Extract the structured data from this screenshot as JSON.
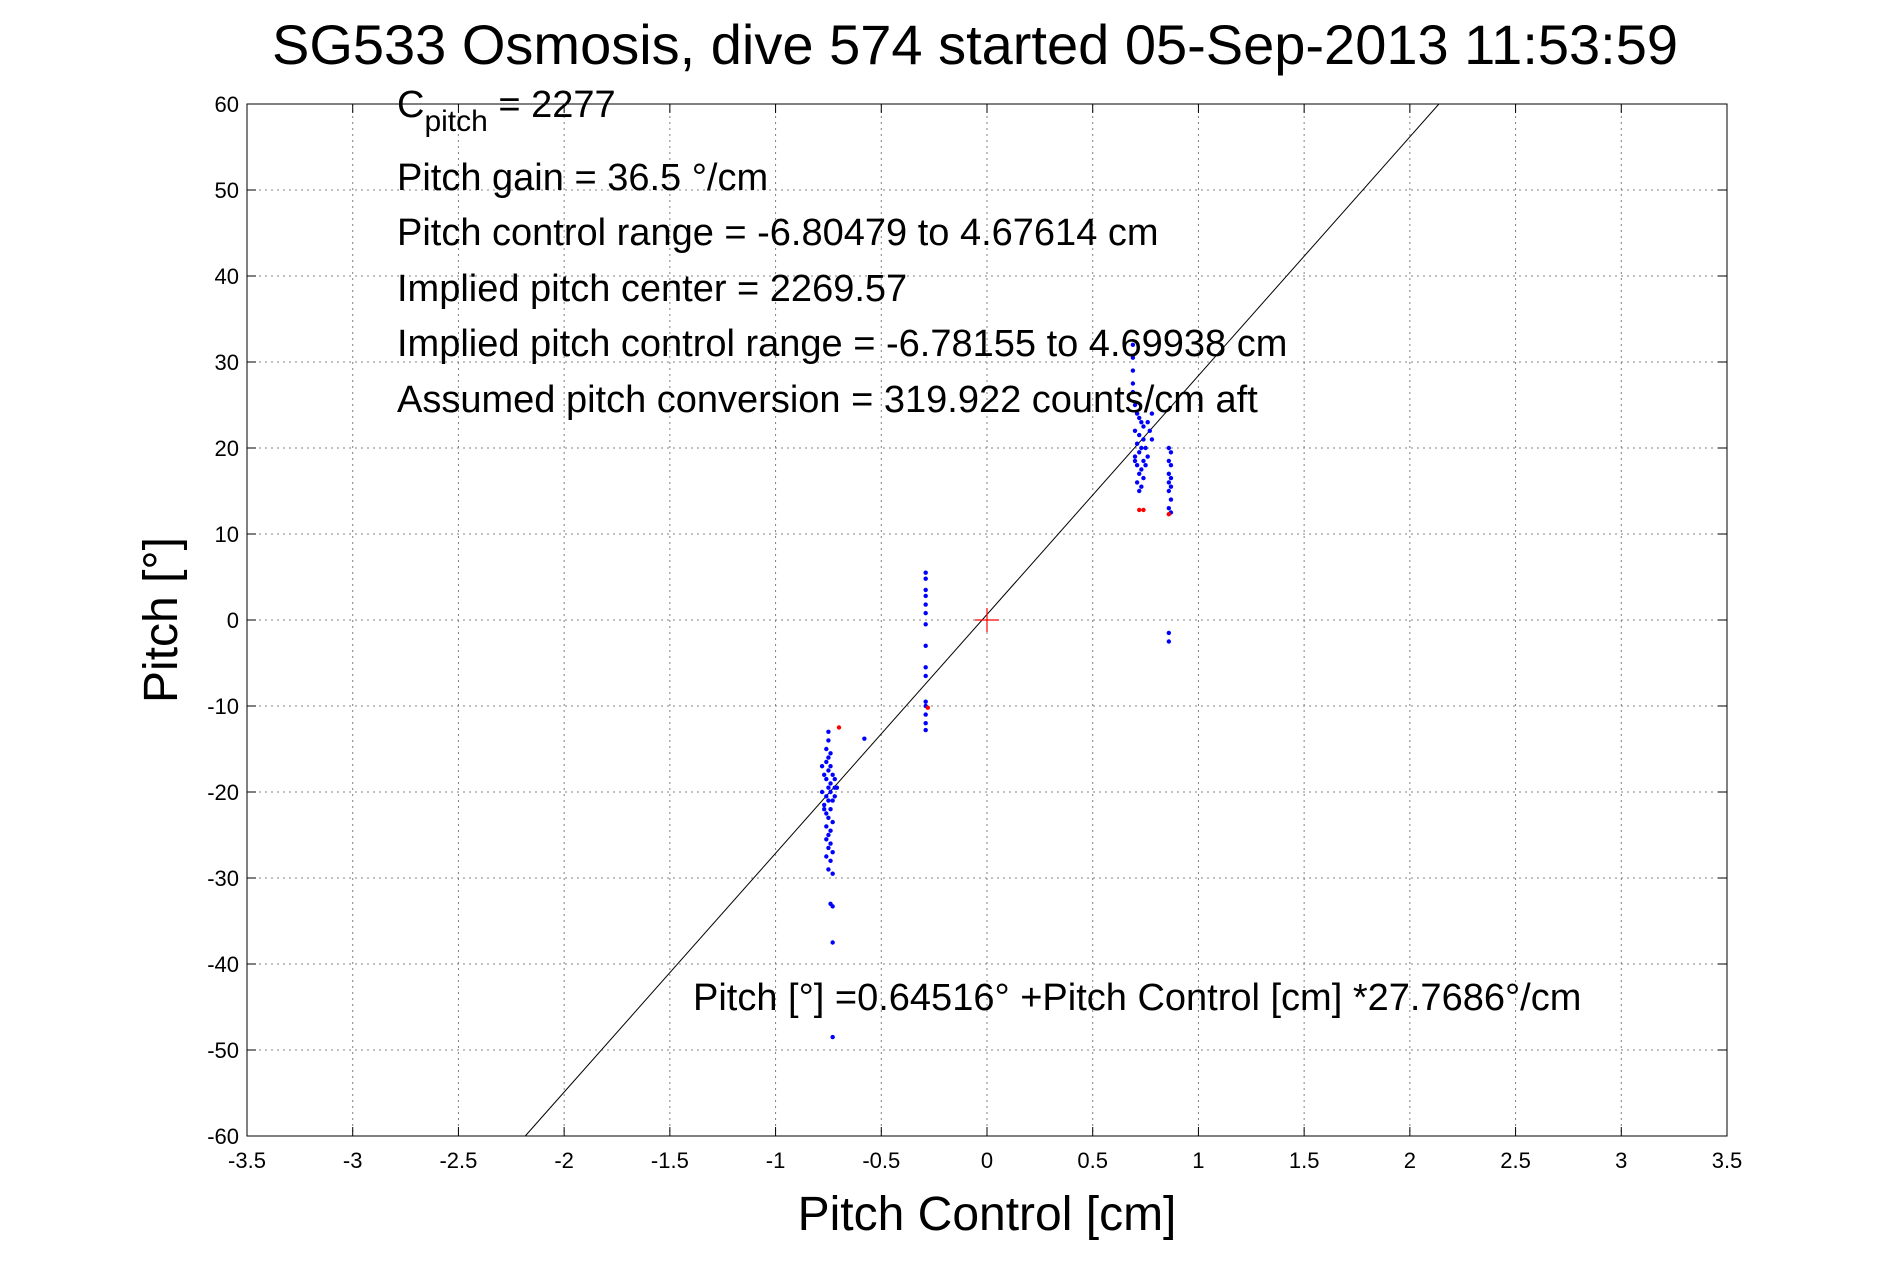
{
  "title": "SG533 Osmosis, dive 574 started 05-Sep-2013 11:53:59",
  "annotations": {
    "cpitch_main": "C",
    "cpitch_sub": "pitch",
    "cpitch_value": " = 2277",
    "line2": "Pitch gain = 36.5 °/cm",
    "line3": "Pitch control range = -6.80479 to 4.67614 cm",
    "line4": "Implied pitch center = 2269.57",
    "line5": "Implied pitch control range = -6.78155 to 4.69938 cm",
    "line6": "Assumed pitch conversion = 319.922 counts/cm aft"
  },
  "fit_equation": "Pitch [°] =0.64516° +Pitch Control [cm] *27.7686°/cm",
  "chart_data": {
    "type": "scatter",
    "xlabel": "Pitch Control [cm]",
    "ylabel": "Pitch [°]",
    "xlim": [
      -3.5,
      3.5
    ],
    "ylim": [
      -60,
      60
    ],
    "xticks": [
      -3.5,
      -3,
      -2.5,
      -2,
      -1.5,
      -1,
      -0.5,
      0,
      0.5,
      1,
      1.5,
      2,
      2.5,
      3,
      3.5
    ],
    "yticks": [
      60,
      50,
      40,
      30,
      20,
      10,
      0,
      -10,
      -20,
      -30,
      -40,
      -50,
      -60
    ],
    "xtick_labels": [
      "-3.5",
      "-3",
      "-2.5",
      "-2",
      "-1.5",
      "-1",
      "-0.5",
      "0",
      "0.5",
      "1",
      "1.5",
      "2",
      "2.5",
      "3",
      "3.5"
    ],
    "ytick_labels": [
      "60",
      "50",
      "40",
      "30",
      "20",
      "10",
      "0",
      "-10",
      "-20",
      "-30",
      "-40",
      "-50",
      "-60"
    ],
    "grid": true,
    "fit_line": {
      "intercept": 0.64516,
      "slope": 27.7686
    },
    "center_marker": {
      "x": 0,
      "y": 0,
      "color": "#ff0000"
    },
    "series": [
      {
        "color": "#0000ff",
        "points": [
          [
            -0.75,
            -13
          ],
          [
            -0.75,
            -14
          ],
          [
            -0.76,
            -15
          ],
          [
            -0.74,
            -15.5
          ],
          [
            -0.75,
            -16
          ],
          [
            -0.76,
            -16.5
          ],
          [
            -0.74,
            -17
          ],
          [
            -0.75,
            -17.5
          ],
          [
            -0.77,
            -18
          ],
          [
            -0.73,
            -18
          ],
          [
            -0.76,
            -18.5
          ],
          [
            -0.74,
            -19
          ],
          [
            -0.75,
            -19.5
          ],
          [
            -0.72,
            -19.5
          ],
          [
            -0.78,
            -20
          ],
          [
            -0.74,
            -20
          ],
          [
            -0.76,
            -20.5
          ],
          [
            -0.73,
            -21
          ],
          [
            -0.75,
            -21
          ],
          [
            -0.77,
            -21.5
          ],
          [
            -0.74,
            -22
          ],
          [
            -0.76,
            -22.5
          ],
          [
            -0.75,
            -23
          ],
          [
            -0.73,
            -23.5
          ],
          [
            -0.76,
            -24
          ],
          [
            -0.74,
            -24.5
          ],
          [
            -0.75,
            -25
          ],
          [
            -0.76,
            -25.5
          ],
          [
            -0.74,
            -26
          ],
          [
            -0.75,
            -26.5
          ],
          [
            -0.73,
            -27
          ],
          [
            -0.76,
            -27.5
          ],
          [
            -0.74,
            -28
          ],
          [
            -0.75,
            -29
          ],
          [
            -0.73,
            -29.5
          ],
          [
            -0.74,
            -33
          ],
          [
            -0.73,
            -33.3
          ],
          [
            -0.73,
            -37.5
          ],
          [
            -0.73,
            -48.5
          ],
          [
            -0.71,
            -19.5
          ],
          [
            -0.72,
            -20.5
          ],
          [
            -0.78,
            -17
          ],
          [
            -0.77,
            -22
          ],
          [
            -0.72,
            -18.5
          ],
          [
            -0.58,
            -13.8
          ],
          [
            -0.29,
            5.5
          ],
          [
            -0.29,
            4.8
          ],
          [
            -0.29,
            3.5
          ],
          [
            -0.29,
            2.8
          ],
          [
            -0.29,
            1.8
          ],
          [
            -0.29,
            0.8
          ],
          [
            -0.29,
            -0.5
          ],
          [
            -0.29,
            -3
          ],
          [
            -0.29,
            -5.5
          ],
          [
            -0.29,
            -6.5
          ],
          [
            -0.29,
            -9.5
          ],
          [
            -0.29,
            -10
          ],
          [
            -0.29,
            -11
          ],
          [
            -0.29,
            -12
          ],
          [
            -0.29,
            -12.8
          ],
          [
            0.69,
            32
          ],
          [
            0.69,
            30.5
          ],
          [
            0.69,
            29
          ],
          [
            0.69,
            27.5
          ],
          [
            0.69,
            26.5
          ],
          [
            0.7,
            25
          ],
          [
            0.71,
            24
          ],
          [
            0.72,
            23.5
          ],
          [
            0.73,
            23
          ],
          [
            0.74,
            22.5
          ],
          [
            0.7,
            22
          ],
          [
            0.72,
            21.5
          ],
          [
            0.74,
            21
          ],
          [
            0.71,
            20.5
          ],
          [
            0.73,
            20
          ],
          [
            0.75,
            20
          ],
          [
            0.72,
            19.5
          ],
          [
            0.7,
            19
          ],
          [
            0.74,
            18.5
          ],
          [
            0.71,
            18
          ],
          [
            0.73,
            17.5
          ],
          [
            0.72,
            17
          ],
          [
            0.74,
            16.5
          ],
          [
            0.71,
            16
          ],
          [
            0.73,
            15.5
          ],
          [
            0.72,
            15
          ],
          [
            0.76,
            23
          ],
          [
            0.77,
            22
          ],
          [
            0.78,
            21
          ],
          [
            0.76,
            19
          ],
          [
            0.75,
            18
          ],
          [
            0.78,
            24
          ],
          [
            0.7,
            18.5
          ],
          [
            0.86,
            20
          ],
          [
            0.87,
            19.5
          ],
          [
            0.86,
            18.5
          ],
          [
            0.87,
            18
          ],
          [
            0.86,
            17
          ],
          [
            0.87,
            16.5
          ],
          [
            0.86,
            16
          ],
          [
            0.87,
            15.5
          ],
          [
            0.86,
            15
          ],
          [
            0.87,
            14
          ],
          [
            0.86,
            13
          ],
          [
            0.87,
            12.5
          ],
          [
            0.86,
            -1.5
          ],
          [
            0.86,
            -2.5
          ]
        ]
      },
      {
        "color": "#ff0000",
        "points": [
          [
            -0.7,
            -12.5
          ],
          [
            0.72,
            12.8
          ],
          [
            0.74,
            12.8
          ],
          [
            0.86,
            12.3
          ],
          [
            -0.28,
            -10.2
          ]
        ]
      }
    ]
  }
}
